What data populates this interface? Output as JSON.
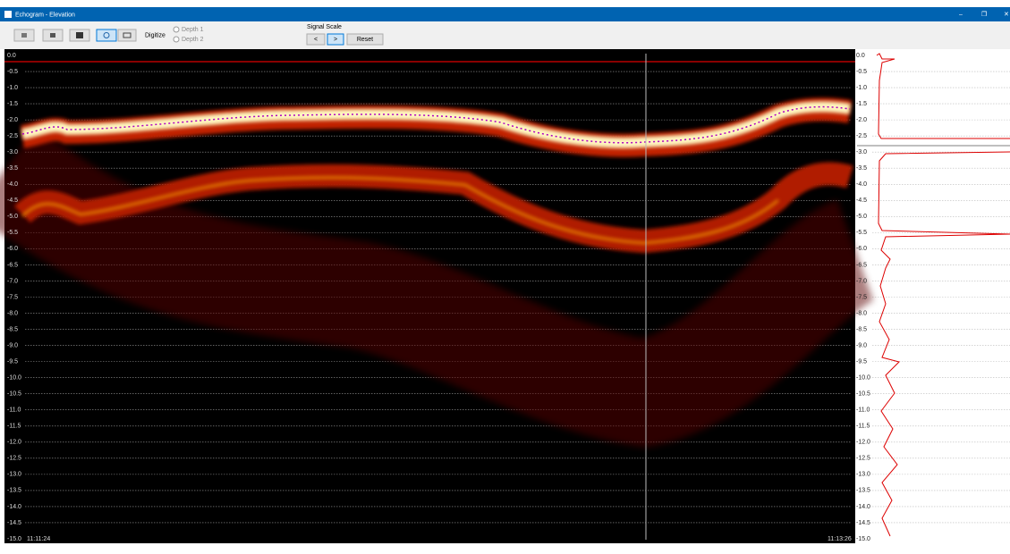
{
  "window": {
    "title": "Echogram - Elevation",
    "controls": [
      "–",
      "❐",
      "✕"
    ]
  },
  "toolbar": {
    "digitize_label": "Digitize",
    "radio_options": [
      "Depth 1",
      "Depth 2"
    ],
    "signal_scale_label": "Signal Scale",
    "buttons": [
      "<",
      ">",
      "Reset"
    ]
  },
  "echogram": {
    "left_axis": [
      "0.0",
      "-0.5",
      "-1.0",
      "-1.5",
      "-2.0",
      "-2.5",
      "-3.0",
      "-3.5",
      "-4.0",
      "-4.5",
      "-5.0",
      "-5.5",
      "-6.0",
      "-6.5",
      "-7.0",
      "-7.5",
      "-8.0",
      "-8.5",
      "-9.0",
      "-9.5",
      "-10.0",
      "-10.5",
      "-11.0",
      "-11.5",
      "-12.0",
      "-12.5",
      "-13.0",
      "-13.5",
      "-14.0",
      "-14.5",
      "-15.0"
    ],
    "right_axis": [
      "0.0",
      "-0.5",
      "-1.0",
      "-1.5",
      "-2.0",
      "-2.5",
      "-3.0",
      "-3.5",
      "-4.0",
      "-4.5",
      "-5.0",
      "-5.5",
      "-6.0",
      "-6.5",
      "-7.0",
      "-7.5",
      "-8.0",
      "-8.5",
      "-9.0",
      "-9.5",
      "-10.0",
      "-10.5",
      "-11.0",
      "-11.5",
      "-12.0",
      "-12.5",
      "-13.0",
      "-13.5",
      "-14.0",
      "-14.5",
      "-15.0"
    ],
    "start_time": "11:11:24",
    "end_time": "11:13:26"
  }
}
